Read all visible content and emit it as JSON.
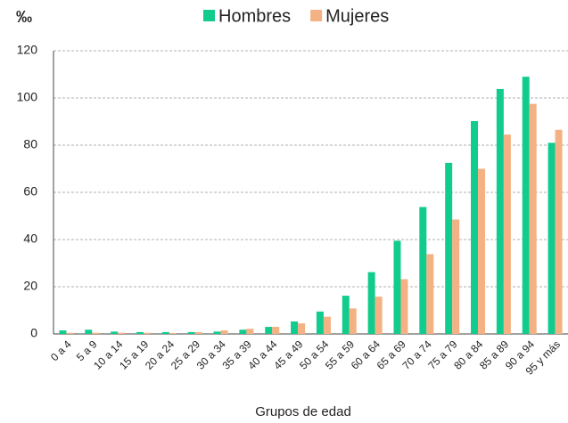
{
  "chart_data": {
    "type": "bar",
    "y_label": "‰",
    "x_label": "Grupos de edad",
    "categories": [
      "0 a 4",
      "5 a 9",
      "10 a 14",
      "15 a 19",
      "20 a 24",
      "25 a 29",
      "30 a 34",
      "35 a 39",
      "40 a 44",
      "45 a 49",
      "50 a 54",
      "55 a 59",
      "60 a 64",
      "65 a 69",
      "70 a 74",
      "75 a 79",
      "80 a 84",
      "85 a 89",
      "90 a 94",
      "95 y más"
    ],
    "series": [
      {
        "name": "Hombres",
        "color": "#12cc8f",
        "values": [
          1.5,
          1.8,
          1.0,
          0.8,
          0.8,
          0.8,
          1.0,
          1.8,
          3.0,
          5.3,
          9.5,
          16.2,
          26.2,
          39.5,
          53.8,
          72.5,
          90.2,
          103.8,
          109,
          81
        ]
      },
      {
        "name": "Mujeres",
        "color": "#f4b183",
        "values": [
          0.5,
          0.5,
          0.5,
          0.5,
          0.4,
          0.8,
          1.5,
          2.2,
          3.0,
          4.5,
          7.3,
          10.8,
          15.8,
          23.2,
          33.8,
          48.5,
          70,
          84.5,
          97.5,
          86.5
        ]
      }
    ],
    "ylim": [
      0,
      120
    ],
    "yticks": [
      0,
      20,
      40,
      60,
      80,
      100,
      120
    ],
    "grid": true,
    "legend": "top"
  }
}
